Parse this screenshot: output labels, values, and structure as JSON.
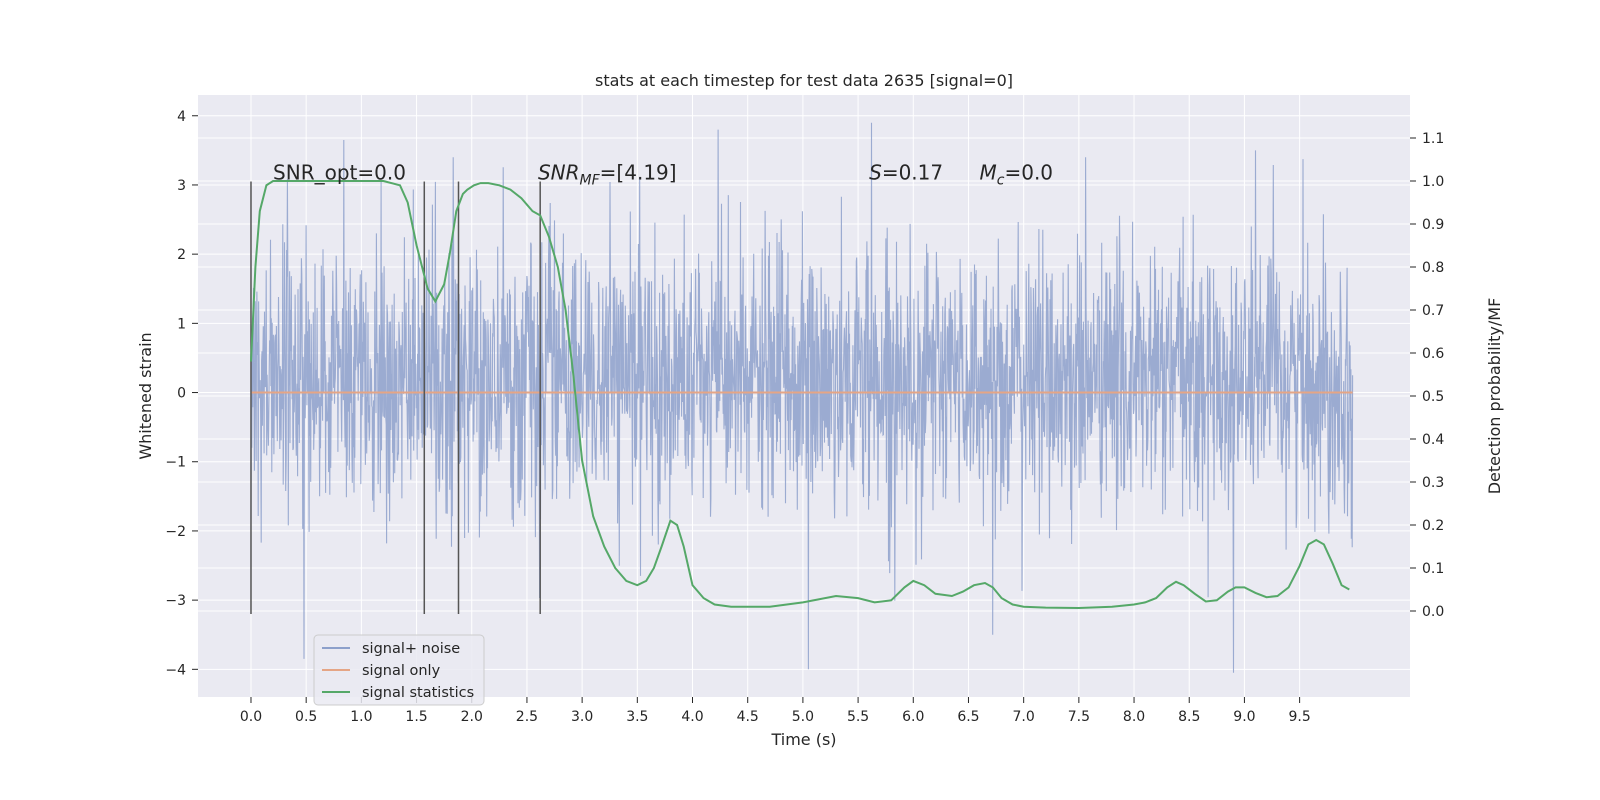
{
  "chart_data": {
    "type": "line",
    "title": "stats at each timestep for test data 2635 [signal=0]",
    "xlabel": "Time (s)",
    "ylabel": "Whitened strain",
    "ylabel_right": "Detection probability/MF",
    "xlim": [
      -0.48,
      10.5
    ],
    "ylim": [
      -4.4,
      4.3
    ],
    "ylim_right": [
      -0.2,
      1.2
    ],
    "x_ticks": [
      0.0,
      0.5,
      1.0,
      1.5,
      2.0,
      2.5,
      3.0,
      3.5,
      4.0,
      4.5,
      5.0,
      5.5,
      6.0,
      6.5,
      7.0,
      7.5,
      8.0,
      8.5,
      9.0,
      9.5
    ],
    "x_tick_labels": [
      "0.0",
      "0.5",
      "1.0",
      "1.5",
      "2.0",
      "2.5",
      "3.0",
      "3.5",
      "4.0",
      "4.5",
      "5.0",
      "5.5",
      "6.0",
      "6.5",
      "7.0",
      "7.5",
      "8.0",
      "8.5",
      "9.0",
      "9.5"
    ],
    "y_ticks": [
      -4,
      -3,
      -2,
      -1,
      0,
      1,
      2,
      3,
      4
    ],
    "y_tick_labels": [
      "−4",
      "−3",
      "−2",
      "−1",
      "0",
      "1",
      "2",
      "3",
      "4"
    ],
    "y_right_ticks": [
      0.0,
      0.1,
      0.2,
      0.3,
      0.4,
      0.5,
      0.6,
      0.7,
      0.8,
      0.9,
      1.0,
      1.1
    ],
    "y_right_tick_labels": [
      "0.0",
      "0.1",
      "0.2",
      "0.3",
      "0.4",
      "0.5",
      "0.6",
      "0.7",
      "0.8",
      "0.9",
      "1.0",
      "1.1"
    ],
    "grid": true,
    "legend_position": "lower-left",
    "colors": {
      "noise": "#8da0cb",
      "signal": "#e5a585",
      "stats": "#55a868",
      "vline": "#555555",
      "background": "#eaeaf2",
      "grid": "#ffffff"
    },
    "series": [
      {
        "name": "signal+ noise",
        "axis": "left",
        "style": "dense-noise",
        "x_range": [
          0.0,
          9.98
        ],
        "envelope_typical": [
          -1.8,
          2.2
        ],
        "extremes": [
          {
            "x": 0.84,
            "y": 3.65
          },
          {
            "x": 0.48,
            "y": -3.85
          },
          {
            "x": 4.23,
            "y": 3.8
          },
          {
            "x": 5.62,
            "y": 3.9
          },
          {
            "x": 5.05,
            "y": -4.0
          },
          {
            "x": 9.1,
            "y": 3.5
          },
          {
            "x": 8.9,
            "y": -4.05
          },
          {
            "x": 6.72,
            "y": -3.5
          }
        ]
      },
      {
        "name": "signal only",
        "axis": "left",
        "x": [
          0.0,
          9.98
        ],
        "y": [
          0.0,
          0.0
        ]
      },
      {
        "name": "signal statistics",
        "axis": "right",
        "x": [
          0.0,
          0.04,
          0.08,
          0.14,
          0.2,
          0.3,
          0.5,
          0.8,
          1.0,
          1.2,
          1.35,
          1.42,
          1.5,
          1.6,
          1.67,
          1.75,
          1.8,
          1.86,
          1.92,
          1.96,
          2.02,
          2.08,
          2.15,
          2.25,
          2.35,
          2.45,
          2.55,
          2.62,
          2.7,
          2.78,
          2.85,
          2.92,
          3.0,
          3.1,
          3.2,
          3.3,
          3.4,
          3.5,
          3.58,
          3.65,
          3.72,
          3.8,
          3.86,
          3.92,
          4.0,
          4.1,
          4.2,
          4.35,
          4.5,
          4.7,
          5.0,
          5.3,
          5.5,
          5.65,
          5.8,
          5.92,
          6.0,
          6.1,
          6.2,
          6.35,
          6.45,
          6.55,
          6.65,
          6.72,
          6.8,
          6.9,
          7.0,
          7.2,
          7.5,
          7.8,
          8.0,
          8.1,
          8.2,
          8.3,
          8.38,
          8.45,
          8.55,
          8.65,
          8.75,
          8.85,
          8.92,
          9.0,
          9.1,
          9.2,
          9.3,
          9.4,
          9.5,
          9.58,
          9.65,
          9.72,
          9.8,
          9.88,
          9.95
        ],
        "y": [
          0.58,
          0.8,
          0.93,
          0.99,
          1.0,
          1.0,
          1.0,
          1.0,
          1.0,
          1.0,
          0.99,
          0.95,
          0.85,
          0.75,
          0.72,
          0.76,
          0.83,
          0.93,
          0.97,
          0.98,
          0.99,
          0.995,
          0.995,
          0.99,
          0.98,
          0.96,
          0.93,
          0.92,
          0.87,
          0.8,
          0.7,
          0.55,
          0.35,
          0.22,
          0.15,
          0.1,
          0.07,
          0.06,
          0.07,
          0.1,
          0.15,
          0.21,
          0.2,
          0.15,
          0.06,
          0.03,
          0.015,
          0.01,
          0.01,
          0.01,
          0.02,
          0.035,
          0.03,
          0.02,
          0.025,
          0.055,
          0.07,
          0.06,
          0.04,
          0.035,
          0.045,
          0.06,
          0.065,
          0.055,
          0.03,
          0.015,
          0.01,
          0.008,
          0.007,
          0.01,
          0.015,
          0.02,
          0.03,
          0.055,
          0.068,
          0.06,
          0.04,
          0.022,
          0.025,
          0.045,
          0.055,
          0.055,
          0.042,
          0.032,
          0.035,
          0.055,
          0.105,
          0.155,
          0.165,
          0.155,
          0.11,
          0.06,
          0.05
        ]
      }
    ],
    "vlines": [
      0.0,
      1.57,
      1.88,
      2.62
    ],
    "vline_range_left": [
      -3.2,
      3.05
    ],
    "annotations": [
      {
        "text": "SNR_opt=0.0",
        "x": 0.2,
        "y": 3.05
      },
      {
        "text": "SNR",
        "italic_part": true,
        "sub": "MF",
        "tail": "=[4.19]",
        "x": 2.6,
        "y": 3.05
      },
      {
        "text": "S",
        "tail": "=0.17",
        "x": 5.6,
        "y": 3.05
      },
      {
        "text": "M",
        "sub": "c",
        "tail": "=0.0",
        "x": 6.6,
        "y": 3.05
      }
    ]
  }
}
